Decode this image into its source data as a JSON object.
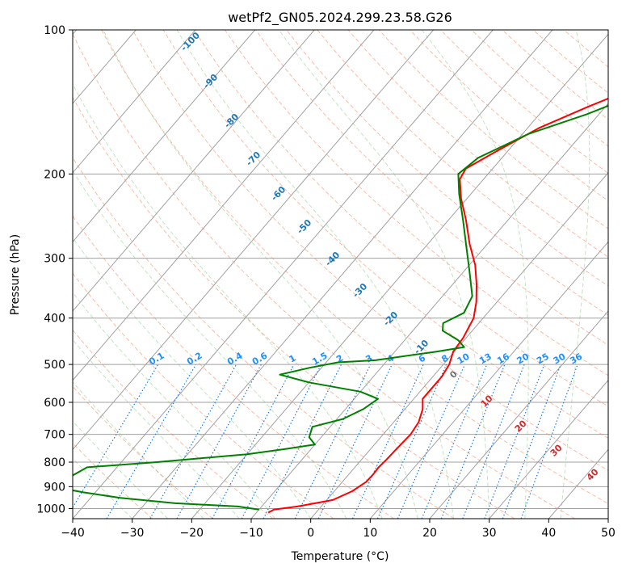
{
  "chart_data": {
    "type": "line",
    "title": "wetPf2_GN05.2024.299.23.58.G26",
    "xlabel": "Temperature (°C)",
    "ylabel": "Pressure (hPa)",
    "xlim": [
      -40,
      50
    ],
    "ylim": [
      1050,
      100
    ],
    "y_scale": "log",
    "grid": true,
    "x_ticks": [
      -40,
      -30,
      -20,
      -10,
      0,
      10,
      20,
      30,
      40,
      50
    ],
    "y_ticks": [
      100,
      200,
      300,
      400,
      500,
      600,
      700,
      800,
      900,
      1000
    ],
    "skew_label_values": [
      "-100",
      "-90",
      "-80",
      "-70",
      "-60",
      "-50",
      "-40",
      "-30",
      "-20",
      "-10",
      "0",
      "10",
      "20",
      "30",
      "40"
    ],
    "mixing_ratio_labels": [
      "0.1",
      "0.2",
      "0.4",
      "0.6",
      "1",
      "1.5",
      "2",
      "3",
      "4",
      "6",
      "8",
      "10",
      "13",
      "16",
      "20",
      "25",
      "30",
      "36"
    ],
    "series": [
      {
        "role": "temperature",
        "color": "#ff0000",
        "points": [
          [
            -8,
            1020
          ],
          [
            -7.5,
            1005
          ],
          [
            -4,
            990
          ],
          [
            1,
            960
          ],
          [
            3,
            920
          ],
          [
            4,
            880
          ],
          [
            4.1,
            850
          ],
          [
            4,
            820
          ],
          [
            4.2,
            790
          ],
          [
            4.3,
            760
          ],
          [
            4.6,
            700
          ],
          [
            4.2,
            660
          ],
          [
            3,
            620
          ],
          [
            1.5,
            590
          ],
          [
            1.5,
            560
          ],
          [
            1.5,
            530
          ],
          [
            1,
            500
          ],
          [
            -0.2,
            470
          ],
          [
            -0.5,
            440
          ],
          [
            -1.6,
            400
          ],
          [
            -3.5,
            370
          ],
          [
            -6,
            340
          ],
          [
            -9,
            310
          ],
          [
            -13,
            280
          ],
          [
            -17,
            250
          ],
          [
            -21,
            225
          ],
          [
            -24,
            205
          ],
          [
            -24.5,
            195
          ],
          [
            -22,
            180
          ],
          [
            -18,
            160
          ],
          [
            -13,
            145
          ],
          [
            -7,
            130
          ],
          [
            0,
            118
          ],
          [
            5,
            105
          ],
          [
            8,
            100
          ]
        ]
      },
      {
        "role": "dewpoint",
        "color": "#008000",
        "points": [
          [
            -10,
            1005
          ],
          [
            -14,
            990
          ],
          [
            -25,
            975
          ],
          [
            -35,
            950
          ],
          [
            -42,
            925
          ],
          [
            -48,
            900
          ],
          [
            -45,
            820
          ],
          [
            -34,
            800
          ],
          [
            -20,
            770
          ],
          [
            -14,
            750
          ],
          [
            -10,
            735
          ],
          [
            -12,
            710
          ],
          [
            -13,
            675
          ],
          [
            -9,
            650
          ],
          [
            -7,
            620
          ],
          [
            -6,
            590
          ],
          [
            -10,
            570
          ],
          [
            -20,
            545
          ],
          [
            -26,
            525
          ],
          [
            -22,
            508
          ],
          [
            -18,
            495
          ],
          [
            -12,
            490
          ],
          [
            -3,
            470
          ],
          [
            1,
            460
          ],
          [
            -1,
            445
          ],
          [
            -5,
            425
          ],
          [
            -6,
            410
          ],
          [
            -4,
            390
          ],
          [
            -5,
            360
          ],
          [
            -9,
            320
          ],
          [
            -13,
            285
          ],
          [
            -17.5,
            250
          ],
          [
            -22,
            220
          ],
          [
            -25,
            200
          ],
          [
            -24,
            185
          ],
          [
            -19,
            165
          ],
          [
            -12,
            150
          ],
          [
            -8,
            140
          ],
          [
            -5,
            130
          ],
          [
            -1,
            120
          ],
          [
            3,
            108
          ],
          [
            6,
            100
          ]
        ]
      }
    ]
  }
}
